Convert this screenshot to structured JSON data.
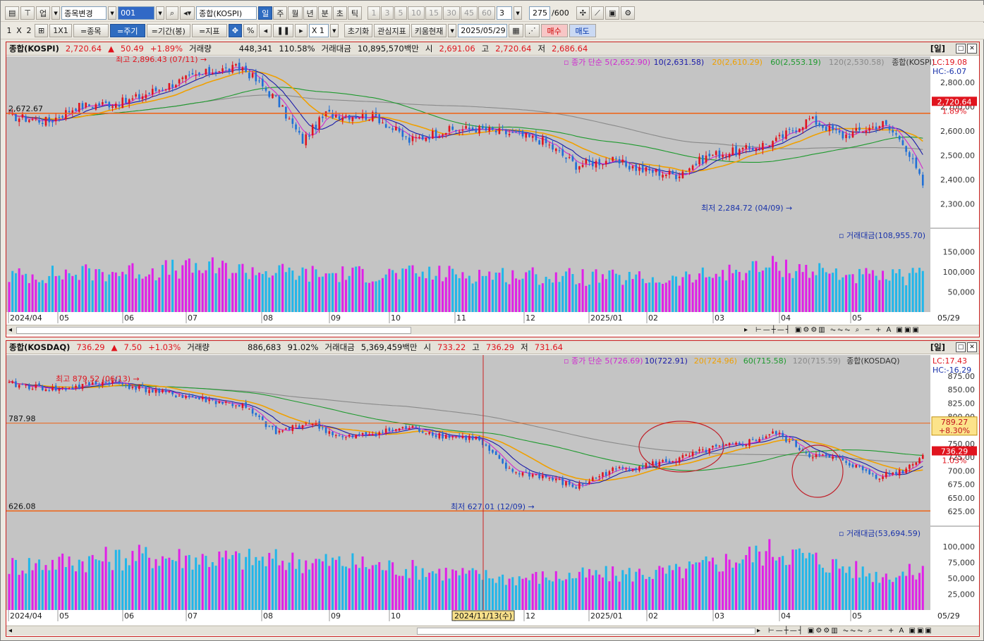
{
  "toolbar1": {
    "market_btn": "업",
    "item_change": "종목변경",
    "code": "001",
    "item_name": "종합(KOSPI)",
    "periods": [
      "일",
      "주",
      "월",
      "년",
      "분",
      "초",
      "틱"
    ],
    "minutes": [
      "1",
      "3",
      "5",
      "10",
      "15",
      "30",
      "45",
      "60"
    ],
    "tick_sel": "3",
    "count": "275",
    "max_count": "/600"
  },
  "toolbar2": {
    "layout": [
      "1",
      "X",
      "2"
    ],
    "grid": "1X1",
    "tabs": [
      "=종목",
      "=주기",
      "=기간(봉)",
      "=지표"
    ],
    "pct": "%",
    "scale": "X 1",
    "reset": "초기화",
    "interest": "관심지표",
    "kiwoom": "키움현재",
    "date": "2025/05/29",
    "buy": "매수",
    "sell": "매도"
  },
  "colors": {
    "up": "#e0141e",
    "down": "#1f6fd6",
    "ma5": "#d02ad0",
    "ma10": "#1a1aa8",
    "ma20": "#f0a000",
    "ma60": "#1e9a2e",
    "ma120": "#8a8a8a",
    "vol_up": "#e020e8",
    "vol_down": "#20b6ea",
    "hline": "#f06010"
  },
  "x_labels": [
    "2024/04",
    "05",
    "06",
    "07",
    "08",
    "09",
    "10",
    "11",
    "12",
    "2025/01",
    "02",
    "03",
    "04",
    "05"
  ],
  "last_date": "05/29",
  "kospi": {
    "name": "종합(KOSPI)",
    "price": "2,720.64",
    "arrow": "▲",
    "change": "50.49",
    "pct": "+1.89%",
    "vol_label": "거래량",
    "volume": "448,341",
    "vol_ratio": "110.58%",
    "amt_label": "거래대금",
    "amount": "10,895,570백만",
    "open_label": "시",
    "open": "2,691.06",
    "high_label": "고",
    "high": "2,720.64",
    "low_label": "저",
    "low": "2,686.64",
    "period": "[일]",
    "legend": {
      "ma_title": "종가 단순",
      "ma5": "5(2,652.90)",
      "ma10": "10(2,631.58)",
      "ma20": "20(2,610.29)",
      "ma60": "60(2,553.19)",
      "ma120": "120(2,530.58)",
      "name": "종합(KOSPI)"
    },
    "lc": "LC:19.08",
    "hc": "HC:-6.07",
    "y_ticks": [
      "2,800.00",
      "2,700.00",
      "2,600.00",
      "2,500.00",
      "2,400.00",
      "2,300.00"
    ],
    "price_tag": "2,720.64",
    "price_tag_pct": "1.89%",
    "hline_label": "2,672.67",
    "max_label": "최고 2,896.43 (07/11)",
    "min_label": "최저 2,284.72 (04/09)",
    "vol_legend": "거래대금(108,955.70)",
    "vol_ticks": [
      "150,000",
      "100,000",
      "50,000"
    ]
  },
  "kosdaq": {
    "name": "종합(KOSDAQ)",
    "price": "736.29",
    "arrow": "▲",
    "change": "7.50",
    "pct": "+1.03%",
    "vol_label": "거래량",
    "volume": "886,683",
    "vol_ratio": "91.02%",
    "amt_label": "거래대금",
    "amount": "5,369,459백만",
    "open_label": "시",
    "open": "733.22",
    "high_label": "고",
    "high": "736.29",
    "low_label": "저",
    "low": "731.64",
    "period": "[일]",
    "legend": {
      "ma_title": "종가 단순",
      "ma5": "5(726.69)",
      "ma10": "10(722.91)",
      "ma20": "20(724.96)",
      "ma60": "60(715.58)",
      "ma120": "120(715.59)",
      "name": "종합(KOSDAQ)"
    },
    "lc": "LC:17.43",
    "hc": "HC:-16.29",
    "y_ticks": [
      "875.00",
      "850.00",
      "825.00",
      "800.00",
      "775.00",
      "750.00",
      "725.00",
      "700.00",
      "675.00",
      "650.00",
      "625.00"
    ],
    "price_tag": "736.29",
    "price_tag_pct": "1.03%",
    "cross_tag": "789.27",
    "cross_tag_pct": "+8.30%",
    "hline_label1": "787.98",
    "hline_label2": "626.08",
    "max_label": "최고 879.52 (06/13)",
    "min_label": "최저 627.01 (12/09)",
    "cross_date": "2024/11/13(수)",
    "vol_legend": "거래대금(53,694.59)",
    "vol_ticks": [
      "100,000",
      "75,000",
      "50,000",
      "25,000"
    ]
  }
}
